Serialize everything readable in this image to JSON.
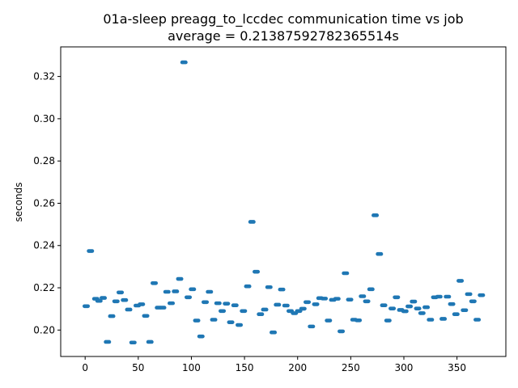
{
  "chart_data": {
    "type": "scatter",
    "title": "01a-sleep preagg_to_lccdec communication time vs job",
    "subtitle": "average = 0.21387592782365514s",
    "xlabel": "",
    "ylabel": "seconds",
    "xlim": [
      -23,
      396
    ],
    "ylim": [
      0.1875,
      0.334
    ],
    "xticks": [
      0,
      50,
      100,
      150,
      200,
      250,
      300,
      350
    ],
    "yticks": [
      0.2,
      0.22,
      0.24,
      0.26,
      0.28,
      0.3,
      0.32
    ],
    "ytick_labels": [
      "0.20",
      "0.22",
      "0.24",
      "0.26",
      "0.28",
      "0.30",
      "0.32"
    ],
    "grid": false,
    "marker_color": "#1f77b4",
    "points": [
      [
        1,
        0.2113
      ],
      [
        5,
        0.2374
      ],
      [
        10,
        0.2148
      ],
      [
        13,
        0.2138
      ],
      [
        17,
        0.2152
      ],
      [
        21,
        0.1944
      ],
      [
        25,
        0.2066
      ],
      [
        29,
        0.2136
      ],
      [
        33,
        0.2178
      ],
      [
        37,
        0.2142
      ],
      [
        41,
        0.2097
      ],
      [
        45,
        0.1941
      ],
      [
        49,
        0.2116
      ],
      [
        53,
        0.2122
      ],
      [
        57,
        0.2067
      ],
      [
        61,
        0.1944
      ],
      [
        65,
        0.2222
      ],
      [
        69,
        0.2106
      ],
      [
        73,
        0.2106
      ],
      [
        77,
        0.2181
      ],
      [
        81,
        0.2127
      ],
      [
        85,
        0.2183
      ],
      [
        89,
        0.2242
      ],
      [
        93,
        0.3267
      ],
      [
        97,
        0.2155
      ],
      [
        101,
        0.2193
      ],
      [
        105,
        0.2045
      ],
      [
        109,
        0.197
      ],
      [
        113,
        0.2132
      ],
      [
        117,
        0.2181
      ],
      [
        121,
        0.2049
      ],
      [
        125,
        0.2127
      ],
      [
        129,
        0.209
      ],
      [
        133,
        0.2125
      ],
      [
        137,
        0.2037
      ],
      [
        141,
        0.2117
      ],
      [
        145,
        0.2024
      ],
      [
        149,
        0.209
      ],
      [
        153,
        0.2207
      ],
      [
        157,
        0.2512
      ],
      [
        161,
        0.2276
      ],
      [
        165,
        0.2075
      ],
      [
        169,
        0.2097
      ],
      [
        173,
        0.2203
      ],
      [
        177,
        0.1989
      ],
      [
        181,
        0.212
      ],
      [
        185,
        0.2192
      ],
      [
        189,
        0.2116
      ],
      [
        193,
        0.209
      ],
      [
        197,
        0.208
      ],
      [
        201,
        0.209
      ],
      [
        205,
        0.2101
      ],
      [
        209,
        0.2132
      ],
      [
        213,
        0.2017
      ],
      [
        217,
        0.2122
      ],
      [
        221,
        0.2151
      ],
      [
        225,
        0.2149
      ],
      [
        229,
        0.2045
      ],
      [
        233,
        0.2143
      ],
      [
        237,
        0.2148
      ],
      [
        241,
        0.1994
      ],
      [
        245,
        0.2269
      ],
      [
        249,
        0.2144
      ],
      [
        253,
        0.2049
      ],
      [
        257,
        0.2046
      ],
      [
        261,
        0.216
      ],
      [
        265,
        0.2136
      ],
      [
        269,
        0.2193
      ],
      [
        273,
        0.2543
      ],
      [
        277,
        0.236
      ],
      [
        281,
        0.2117
      ],
      [
        285,
        0.2045
      ],
      [
        289,
        0.2102
      ],
      [
        293,
        0.2155
      ],
      [
        297,
        0.2095
      ],
      [
        301,
        0.2089
      ],
      [
        305,
        0.2112
      ],
      [
        309,
        0.2135
      ],
      [
        313,
        0.2102
      ],
      [
        317,
        0.208
      ],
      [
        321,
        0.2108
      ],
      [
        325,
        0.2049
      ],
      [
        329,
        0.2155
      ],
      [
        333,
        0.2158
      ],
      [
        337,
        0.2053
      ],
      [
        341,
        0.2158
      ],
      [
        345,
        0.2123
      ],
      [
        349,
        0.2075
      ],
      [
        353,
        0.2233
      ],
      [
        357,
        0.2094
      ],
      [
        361,
        0.217
      ],
      [
        365,
        0.2136
      ],
      [
        369,
        0.2049
      ],
      [
        373,
        0.2165
      ]
    ]
  }
}
